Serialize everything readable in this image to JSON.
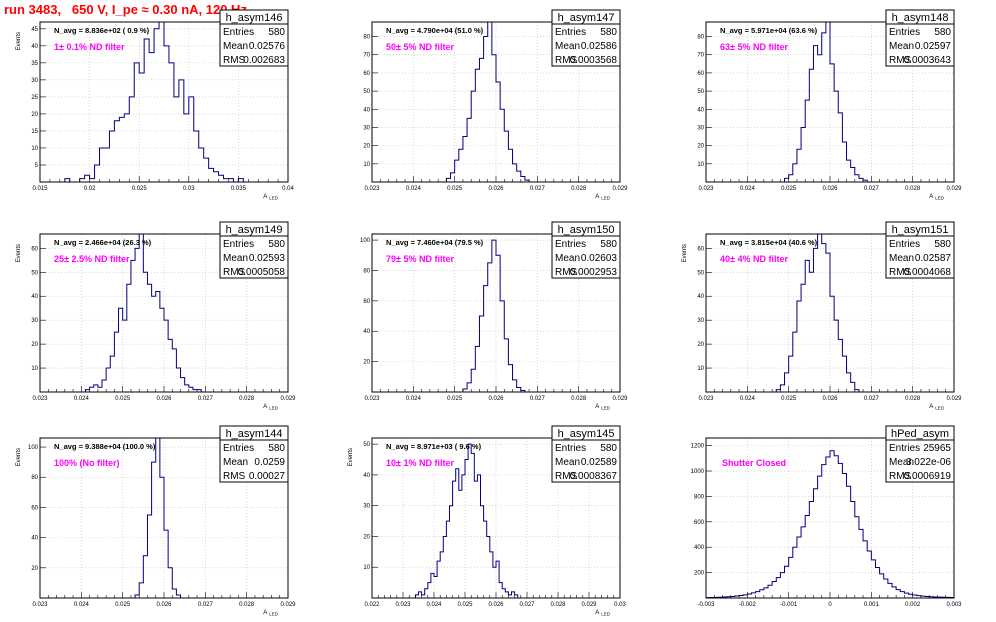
{
  "title": "run 3483,   650 V, I_pe ≈ 0.30 nA, 120 Hz",
  "colors": {
    "title": "#ff0000",
    "histogram": "#000080",
    "filter_label": "#ff00ff",
    "grid": "#c0c0c0",
    "frame": "#000000"
  },
  "stat_labels": {
    "entries": "Entries",
    "mean": "Mean",
    "rms": "RMS"
  },
  "chart_data": [
    {
      "type": "histogram",
      "name": "h_asym146",
      "navg": "N_avg = 8.836e+02 ( 0.9 %)",
      "filter": "1± 0.1% ND filter",
      "stats": {
        "entries": "580",
        "mean": "0.02576",
        "rms": "0.002683"
      },
      "ylabel": "Events",
      "xlabel": "A",
      "xlabel_sub": "LED",
      "xlim": [
        0.015,
        0.04
      ],
      "ylim": [
        0,
        47
      ],
      "grid": true,
      "xticks": [
        0.015,
        0.02,
        0.025,
        0.03,
        0.035,
        0.04
      ],
      "xtick_labels": [
        "0.015",
        "0.02",
        "0.025",
        "0.03",
        "0.035",
        "0.04"
      ],
      "yticks": [
        0,
        5,
        10,
        15,
        20,
        25,
        30,
        35,
        40,
        45
      ],
      "bins": {
        "start": 0.0175,
        "width": 0.0005,
        "counts": [
          1,
          0,
          0,
          1,
          2,
          1,
          5,
          10,
          10,
          15,
          18,
          19,
          20,
          25,
          35,
          32,
          42,
          38,
          45,
          47,
          40,
          35,
          25,
          30,
          20,
          25,
          15,
          10,
          7,
          4,
          3,
          2,
          1,
          1,
          0,
          1
        ]
      }
    },
    {
      "type": "histogram",
      "name": "h_asym147",
      "navg": "N_avg = 4.790e+04 (51.0 %)",
      "filter": "50± 5% ND filter",
      "stats": {
        "entries": "580",
        "mean": "0.02586",
        "rms": "0.0003568"
      },
      "ylabel": "",
      "xlabel": "A",
      "xlabel_sub": "LED",
      "xlim": [
        0.023,
        0.029
      ],
      "ylim": [
        0,
        88
      ],
      "grid": true,
      "xticks": [
        0.023,
        0.024,
        0.025,
        0.026,
        0.027,
        0.028,
        0.029
      ],
      "xtick_labels": [
        "0.023",
        "0.024",
        "0.025",
        "0.026",
        "0.027",
        "0.028",
        "0.029"
      ],
      "yticks": [
        0,
        10,
        20,
        30,
        40,
        50,
        60,
        70,
        80
      ],
      "bins": {
        "start": 0.0248,
        "width": 0.0001,
        "counts": [
          2,
          5,
          12,
          18,
          25,
          35,
          50,
          62,
          68,
          80,
          88,
          70,
          55,
          40,
          28,
          18,
          10,
          6,
          3,
          1
        ]
      }
    },
    {
      "type": "histogram",
      "name": "h_asym148",
      "navg": "N_avg = 5.971e+04 (63.6 %)",
      "filter": "63± 5% ND filter",
      "stats": {
        "entries": "580",
        "mean": "0.02597",
        "rms": "0.0003643"
      },
      "ylabel": "",
      "xlabel": "A",
      "xlabel_sub": "LED",
      "xlim": [
        0.023,
        0.029
      ],
      "ylim": [
        0,
        88
      ],
      "grid": true,
      "xticks": [
        0.023,
        0.024,
        0.025,
        0.026,
        0.027,
        0.028,
        0.029
      ],
      "xtick_labels": [
        "0.023",
        "0.024",
        "0.025",
        "0.026",
        "0.027",
        "0.028",
        "0.029"
      ],
      "yticks": [
        0,
        10,
        20,
        30,
        40,
        50,
        60,
        70,
        80
      ],
      "bins": {
        "start": 0.0249,
        "width": 0.0001,
        "counts": [
          2,
          4,
          10,
          18,
          30,
          45,
          62,
          75,
          70,
          82,
          88,
          65,
          50,
          38,
          22,
          12,
          8,
          4,
          2,
          1
        ]
      }
    },
    {
      "type": "histogram",
      "name": "h_asym149",
      "navg": "N_avg = 2.466e+04 (26.3 %)",
      "filter": "25± 2.5% ND filter",
      "stats": {
        "entries": "580",
        "mean": "0.02593",
        "rms": "0.0005058"
      },
      "ylabel": "Events",
      "xlabel": "A",
      "xlabel_sub": "LED",
      "xlim": [
        0.023,
        0.029
      ],
      "ylim": [
        0,
        66
      ],
      "grid": true,
      "xticks": [
        0.023,
        0.024,
        0.025,
        0.026,
        0.027,
        0.028,
        0.029
      ],
      "xtick_labels": [
        "0.023",
        "0.024",
        "0.025",
        "0.026",
        "0.027",
        "0.028",
        "0.029"
      ],
      "yticks": [
        0,
        10,
        20,
        30,
        40,
        50,
        60
      ],
      "bins": {
        "start": 0.0241,
        "width": 0.0001,
        "counts": [
          1,
          2,
          3,
          2,
          5,
          10,
          15,
          25,
          35,
          30,
          45,
          55,
          60,
          66,
          50,
          45,
          40,
          42,
          35,
          30,
          22,
          18,
          10,
          6,
          3,
          2,
          1,
          1
        ]
      }
    },
    {
      "type": "histogram",
      "name": "h_asym150",
      "navg": "N_avg = 7.460e+04 (79.5 %)",
      "filter": "79± 5% ND filter",
      "stats": {
        "entries": "580",
        "mean": "0.02603",
        "rms": "0.0002953"
      },
      "ylabel": "",
      "xlabel": "A",
      "xlabel_sub": "LED",
      "xlim": [
        0.023,
        0.029
      ],
      "ylim": [
        0,
        104
      ],
      "grid": true,
      "xticks": [
        0.023,
        0.024,
        0.025,
        0.026,
        0.027,
        0.028,
        0.029
      ],
      "xtick_labels": [
        "0.023",
        "0.024",
        "0.025",
        "0.026",
        "0.027",
        "0.028",
        "0.029"
      ],
      "yticks": [
        0,
        20,
        40,
        60,
        80,
        100
      ],
      "bins": {
        "start": 0.0252,
        "width": 0.0001,
        "counts": [
          2,
          6,
          15,
          30,
          50,
          70,
          85,
          100,
          90,
          60,
          35,
          18,
          8,
          3,
          1
        ]
      }
    },
    {
      "type": "histogram",
      "name": "h_asym151",
      "navg": "N_avg = 3.815e+04 (40.6 %)",
      "filter": "40± 4% ND filter",
      "stats": {
        "entries": "580",
        "mean": "0.02587",
        "rms": "0.0004068"
      },
      "ylabel": "Events",
      "xlabel": "A",
      "xlabel_sub": "LED",
      "xlim": [
        0.023,
        0.029
      ],
      "ylim": [
        0,
        66
      ],
      "grid": true,
      "xticks": [
        0.023,
        0.024,
        0.025,
        0.026,
        0.027,
        0.028,
        0.029
      ],
      "xtick_labels": [
        "0.023",
        "0.024",
        "0.025",
        "0.026",
        "0.027",
        "0.028",
        "0.029"
      ],
      "yticks": [
        0,
        10,
        20,
        30,
        40,
        50,
        60
      ],
      "bins": {
        "start": 0.0247,
        "width": 0.0001,
        "counts": [
          1,
          3,
          8,
          15,
          25,
          38,
          45,
          55,
          50,
          60,
          66,
          62,
          58,
          40,
          30,
          22,
          15,
          8,
          4,
          1
        ]
      }
    },
    {
      "type": "histogram",
      "name": "h_asym144",
      "navg": "N_avg = 9.388e+04 (100.0 %)",
      "filter": "100% (No filter)",
      "stats": {
        "entries": "580",
        "mean": "0.0259",
        "rms": "0.00027"
      },
      "ylabel": "Events",
      "xlabel": "A",
      "xlabel_sub": "LED",
      "xlim": [
        0.023,
        0.029
      ],
      "ylim": [
        0,
        106
      ],
      "grid": true,
      "xticks": [
        0.023,
        0.024,
        0.025,
        0.026,
        0.027,
        0.028,
        0.029
      ],
      "xtick_labels": [
        "0.023",
        "0.024",
        "0.025",
        "0.026",
        "0.027",
        "0.028",
        "0.029"
      ],
      "yticks": [
        0,
        20,
        40,
        60,
        80,
        100
      ],
      "bins": {
        "start": 0.0253,
        "width": 0.0001,
        "counts": [
          2,
          10,
          28,
          55,
          90,
          106,
          80,
          45,
          20,
          6,
          2
        ]
      }
    },
    {
      "type": "histogram",
      "name": "h_asym145",
      "navg": "N_avg = 8.971e+03 ( 9.6 %)",
      "filter": "10± 1% ND filter",
      "stats": {
        "entries": "580",
        "mean": "0.02589",
        "rms": "0.0008367"
      },
      "ylabel": "Events",
      "xlabel": "A",
      "xlabel_sub": "LED",
      "xlim": [
        0.022,
        0.03
      ],
      "ylim": [
        0,
        52
      ],
      "grid": true,
      "xticks": [
        0.022,
        0.023,
        0.024,
        0.025,
        0.026,
        0.027,
        0.028,
        0.029,
        0.03
      ],
      "xtick_labels": [
        "0.022",
        "0.023",
        "0.024",
        "0.025",
        "0.026",
        "0.027",
        "0.028",
        "0.029",
        "0.03"
      ],
      "yticks": [
        0,
        10,
        20,
        30,
        40,
        50
      ],
      "bins": {
        "start": 0.0234,
        "width": 0.0001,
        "counts": [
          1,
          2,
          1,
          3,
          5,
          8,
          7,
          12,
          15,
          20,
          25,
          30,
          38,
          42,
          35,
          40,
          45,
          50,
          47,
          38,
          40,
          30,
          25,
          20,
          15,
          10,
          12,
          5,
          3,
          2,
          1,
          2,
          1
        ]
      }
    },
    {
      "type": "histogram",
      "name": "hPed_asym",
      "navg": "",
      "filter": "Shutter Closed",
      "stats": {
        "entries": "25965",
        "mean": "3.022e-06",
        "rms": "0.0006919"
      },
      "ylabel": "",
      "xlabel": "",
      "xlabel_sub": "",
      "xlim": [
        -0.003,
        0.003
      ],
      "ylim": [
        0,
        1260
      ],
      "grid": true,
      "xticks": [
        -0.003,
        -0.002,
        -0.001,
        0,
        0.001,
        0.002,
        0.003
      ],
      "xtick_labels": [
        "-0.003",
        "-0.002",
        "-0.001",
        "0",
        "0.001",
        "0.002",
        "0.003"
      ],
      "yticks": [
        0,
        200,
        400,
        600,
        800,
        1000,
        1200
      ],
      "bins": {
        "start": -0.003,
        "width": 0.0001,
        "counts": [
          3,
          4,
          5,
          6,
          8,
          10,
          12,
          16,
          20,
          25,
          32,
          40,
          50,
          65,
          80,
          100,
          130,
          160,
          200,
          250,
          320,
          400,
          480,
          560,
          650,
          760,
          860,
          960,
          1050,
          1110,
          1160,
          1120,
          1060,
          980,
          880,
          760,
          640,
          540,
          450,
          370,
          300,
          240,
          190,
          150,
          115,
          88,
          66,
          50,
          38,
          30,
          24,
          19,
          15,
          12,
          10,
          8,
          7,
          6,
          5,
          4
        ]
      }
    }
  ]
}
